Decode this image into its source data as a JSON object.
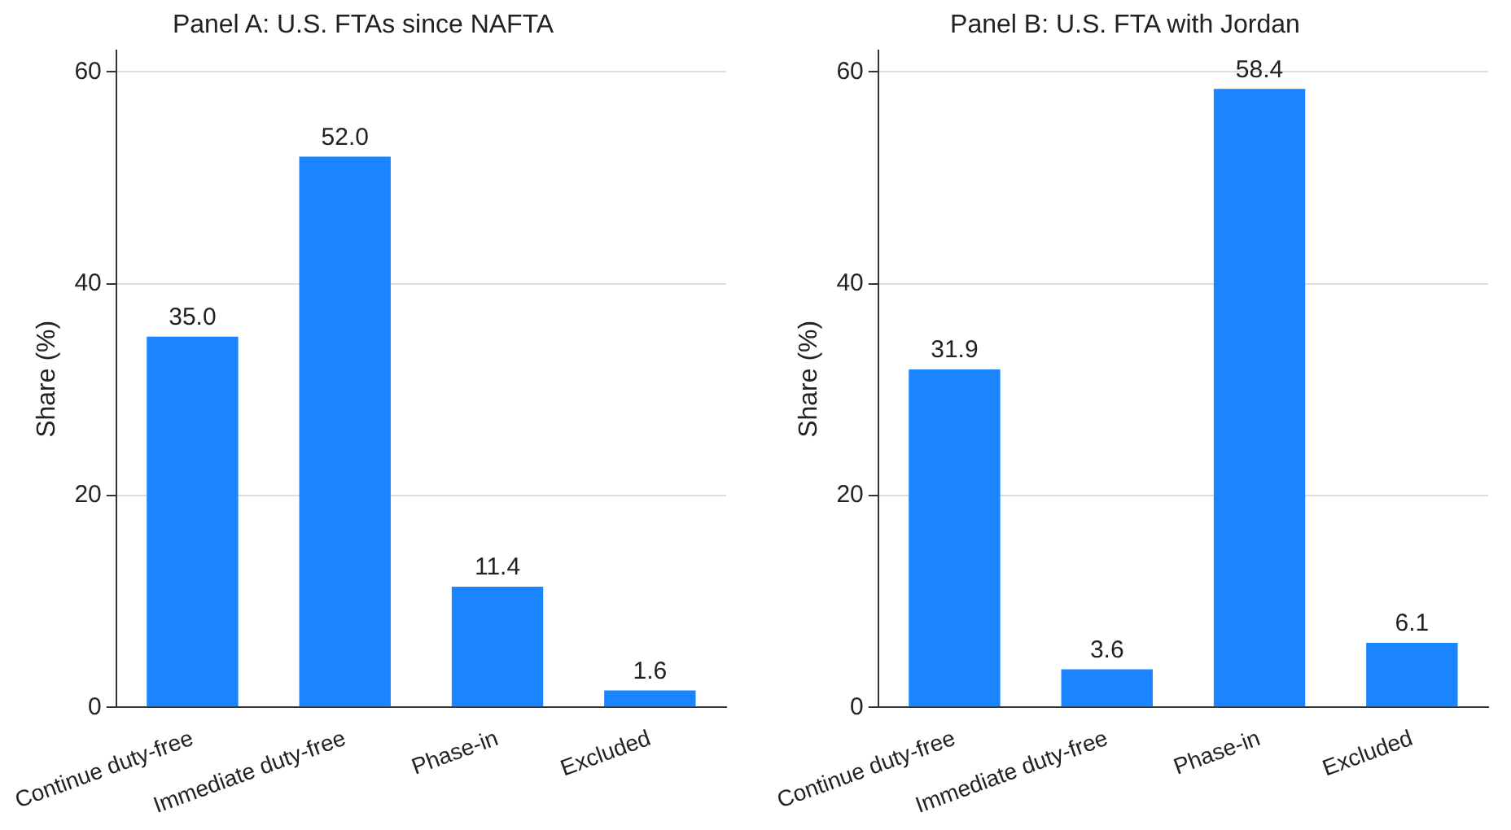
{
  "chart_data": [
    {
      "type": "bar",
      "title": "Panel A: U.S. FTAs since NAFTA",
      "ylabel": "Share (%)",
      "categories": [
        "Continue duty-free",
        "Immediate duty-free",
        "Phase-in",
        "Excluded"
      ],
      "values": [
        35.0,
        52.0,
        11.4,
        1.6
      ],
      "value_labels": [
        "35.0",
        "52.0",
        "11.4",
        "1.6"
      ],
      "color": "#1a85ff",
      "ylim": [
        0,
        62
      ],
      "yticks": [
        0,
        20,
        40,
        60
      ],
      "grid": "y",
      "legend": false
    },
    {
      "type": "bar",
      "title": "Panel B: U.S. FTA with Jordan",
      "ylabel": "Share (%)",
      "categories": [
        "Continue duty-free",
        "Immediate duty-free",
        "Phase-in",
        "Excluded"
      ],
      "values": [
        31.9,
        3.6,
        58.4,
        6.1
      ],
      "value_labels": [
        "31.9",
        "3.6",
        "58.4",
        "6.1"
      ],
      "color": "#1a85ff",
      "ylim": [
        0,
        62
      ],
      "yticks": [
        0,
        20,
        40,
        60
      ],
      "grid": "y",
      "legend": false
    }
  ]
}
